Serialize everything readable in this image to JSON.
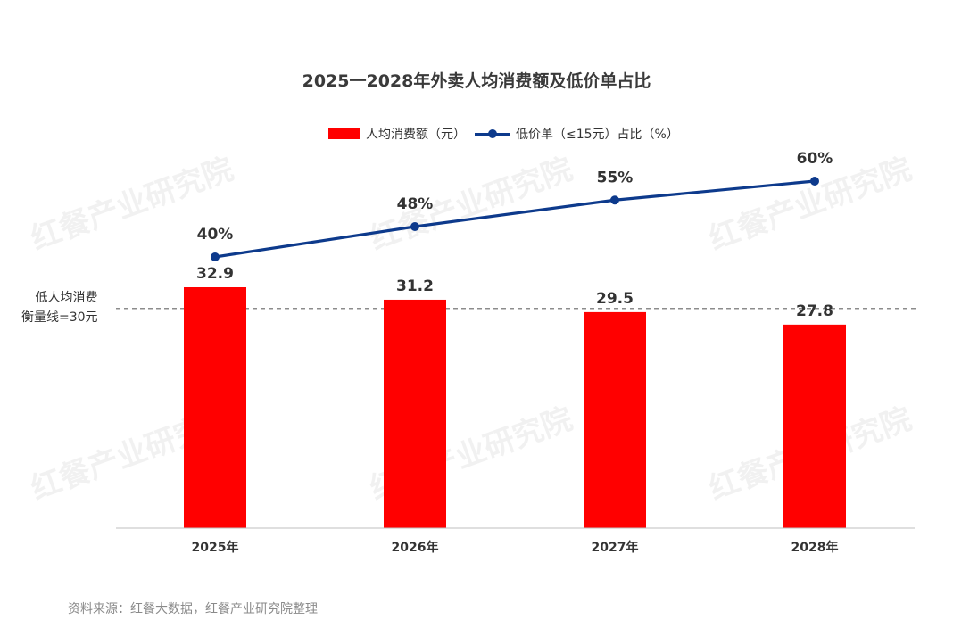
{
  "chart_data": {
    "type": "bar",
    "title": "2025一2028年外卖人均消费额及低价单占比",
    "categories": [
      "2025年",
      "2026年",
      "2027年",
      "2028年"
    ],
    "series": [
      {
        "name": "人均消费额（元）",
        "type": "bar",
        "values": [
          32.9,
          31.2,
          29.5,
          27.8
        ],
        "color": "#ff0000"
      },
      {
        "name": "低价单（≤15元）占比（%）",
        "type": "line",
        "values": [
          40,
          48,
          55,
          60
        ],
        "labels": [
          "40%",
          "48%",
          "55%",
          "60%"
        ],
        "color": "#0d3a8c"
      }
    ],
    "bar_ylim": [
      0,
      40
    ],
    "line_ylim": [
      0,
      100
    ],
    "reference_line": {
      "value": 30,
      "label_line1": "低人均消费",
      "label_line2": "衡量线=30元",
      "style": "dashed"
    },
    "legend_position": "top-center",
    "grid": false
  },
  "watermark": "红餐产业研究院",
  "source": "资料来源：红餐大数据，红餐产业研究院整理"
}
